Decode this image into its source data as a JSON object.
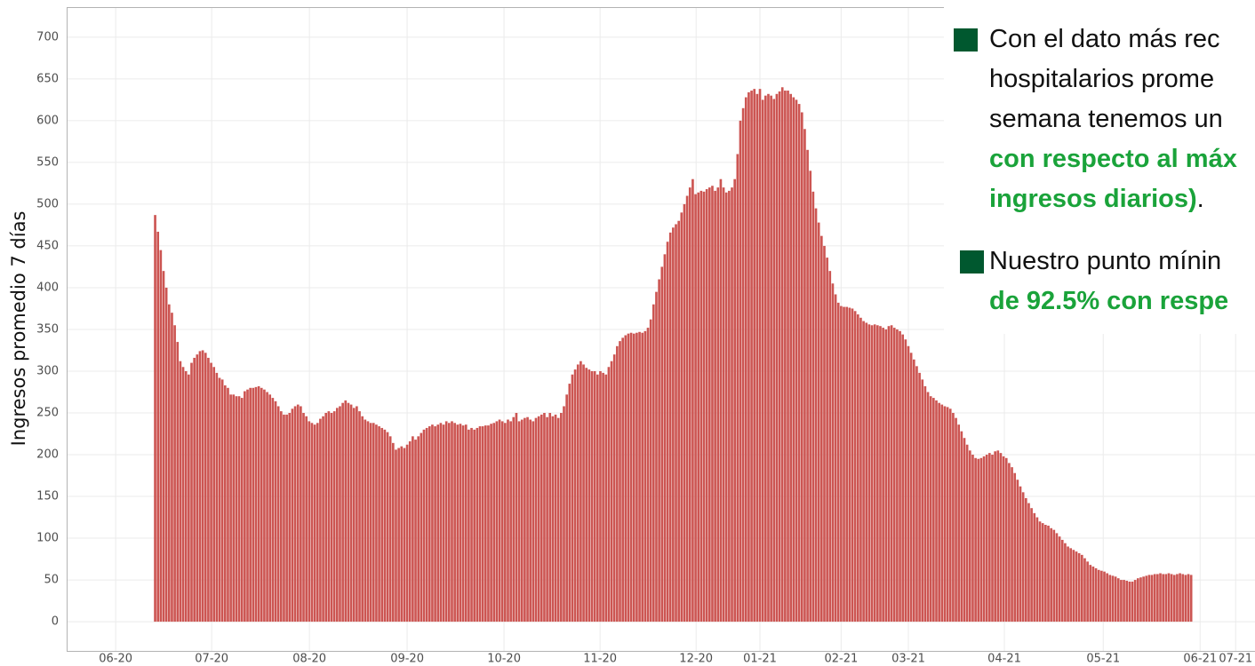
{
  "chart_data": {
    "type": "bar",
    "ylabel": "Ingresos promedio 7 días",
    "color": "#cc5552",
    "grid": true,
    "xlim": [
      -31.6,
      392.8
    ],
    "xticks": [
      {
        "value": -14.1,
        "label": "06-20"
      },
      {
        "value": 20.2,
        "label": "07-20"
      },
      {
        "value": 55.1,
        "label": "08-20"
      },
      {
        "value": 90,
        "label": "09-20"
      },
      {
        "value": 124.6,
        "label": "10-20"
      },
      {
        "value": 158.9,
        "label": "11-20"
      },
      {
        "value": 193.2,
        "label": "12-20"
      },
      {
        "value": 216,
        "label": "01-21"
      },
      {
        "value": 245,
        "label": "02-21"
      },
      {
        "value": 269,
        "label": "03-21"
      },
      {
        "value": 303.3,
        "label": "04-21"
      },
      {
        "value": 338.6,
        "label": "05-21"
      },
      {
        "value": 373.2,
        "label": "06-21"
      },
      {
        "value": 385.9,
        "label": "07-21"
      }
    ],
    "ylim": [
      -35,
      736
    ],
    "yticks": [
      0,
      50,
      100,
      150,
      200,
      250,
      300,
      350,
      400,
      450,
      500,
      550,
      600,
      650,
      700
    ],
    "values": [
      487,
      467,
      445,
      420,
      400,
      380,
      370,
      355,
      335,
      312,
      305,
      300,
      296,
      310,
      316,
      320,
      324,
      325,
      322,
      316,
      310,
      305,
      298,
      292,
      290,
      283,
      280,
      272,
      272,
      270,
      270,
      268,
      276,
      278,
      280,
      280,
      281,
      282,
      280,
      278,
      275,
      272,
      268,
      264,
      258,
      252,
      248,
      248,
      250,
      255,
      258,
      260,
      258,
      250,
      246,
      240,
      238,
      236,
      238,
      243,
      246,
      250,
      252,
      250,
      252,
      256,
      258,
      262,
      265,
      262,
      260,
      256,
      258,
      252,
      246,
      242,
      240,
      238,
      238,
      236,
      234,
      232,
      230,
      227,
      222,
      214,
      206,
      208,
      210,
      208,
      212,
      216,
      222,
      218,
      222,
      226,
      230,
      232,
      234,
      236,
      234,
      236,
      238,
      236,
      240,
      238,
      240,
      238,
      236,
      237,
      235,
      236,
      230,
      232,
      230,
      232,
      234,
      234,
      235,
      235,
      237,
      238,
      240,
      242,
      240,
      238,
      242,
      240,
      245,
      250,
      240,
      242,
      244,
      245,
      242,
      240,
      244,
      246,
      248,
      250,
      245,
      250,
      246,
      248,
      244,
      250,
      258,
      272,
      285,
      296,
      302,
      308,
      312,
      308,
      304,
      302,
      300,
      300,
      296,
      300,
      298,
      296,
      305,
      312,
      320,
      330,
      336,
      340,
      343,
      345,
      346,
      345,
      346,
      347,
      346,
      348,
      352,
      362,
      380,
      395,
      410,
      425,
      440,
      455,
      466,
      472,
      476,
      480,
      490,
      500,
      510,
      520,
      530,
      512,
      514,
      516,
      515,
      518,
      520,
      522,
      516,
      520,
      530,
      520,
      514,
      516,
      520,
      530,
      560,
      600,
      615,
      628,
      634,
      636,
      638,
      632,
      638,
      625,
      630,
      632,
      630,
      626,
      632,
      635,
      640,
      636,
      636,
      632,
      628,
      625,
      620,
      610,
      590,
      565,
      540,
      515,
      495,
      478,
      462,
      450,
      436,
      420,
      405,
      392,
      382,
      378,
      377,
      377,
      376,
      375,
      372,
      368,
      364,
      360,
      358,
      356,
      355,
      356,
      355,
      354,
      352,
      350,
      354,
      355,
      352,
      350,
      348,
      344,
      338,
      330,
      322,
      314,
      306,
      298,
      290,
      282,
      275,
      270,
      268,
      265,
      262,
      260,
      258,
      257,
      255,
      250,
      244,
      236,
      228,
      220,
      212,
      205,
      200,
      196,
      195,
      196,
      198,
      200,
      202,
      200,
      204,
      205,
      202,
      198,
      196,
      190,
      185,
      178,
      170,
      162,
      155,
      148,
      142,
      136,
      130,
      125,
      120,
      118,
      116,
      115,
      112,
      110,
      106,
      102,
      98,
      94,
      90,
      88,
      86,
      84,
      82,
      80,
      76,
      72,
      68,
      66,
      64,
      62,
      61,
      60,
      58,
      56,
      55,
      54,
      52,
      50,
      50,
      49,
      48,
      48,
      50,
      52,
      53,
      54,
      55,
      56,
      56,
      57,
      57,
      58,
      57,
      57,
      58,
      57,
      56,
      57,
      58,
      57,
      56,
      57,
      56
    ],
    "annotations": [
      {
        "lines": [
          [
            {
              "text": "Con el dato más rec"
            }
          ],
          [
            {
              "text": "hospitalarios prome"
            }
          ],
          [
            {
              "text": "semana tenemos un"
            }
          ],
          [
            {
              "text": "con respecto al máx",
              "emphasis": true
            }
          ],
          [
            {
              "text": "ingresos diarios)",
              "emphasis": true
            },
            {
              "text": "."
            }
          ]
        ]
      },
      {
        "lines": [
          [
            {
              "text": "Nuestro punto mínin"
            }
          ],
          [
            {
              "text": "de 92.5% con respe",
              "emphasis": true
            }
          ]
        ]
      }
    ]
  }
}
